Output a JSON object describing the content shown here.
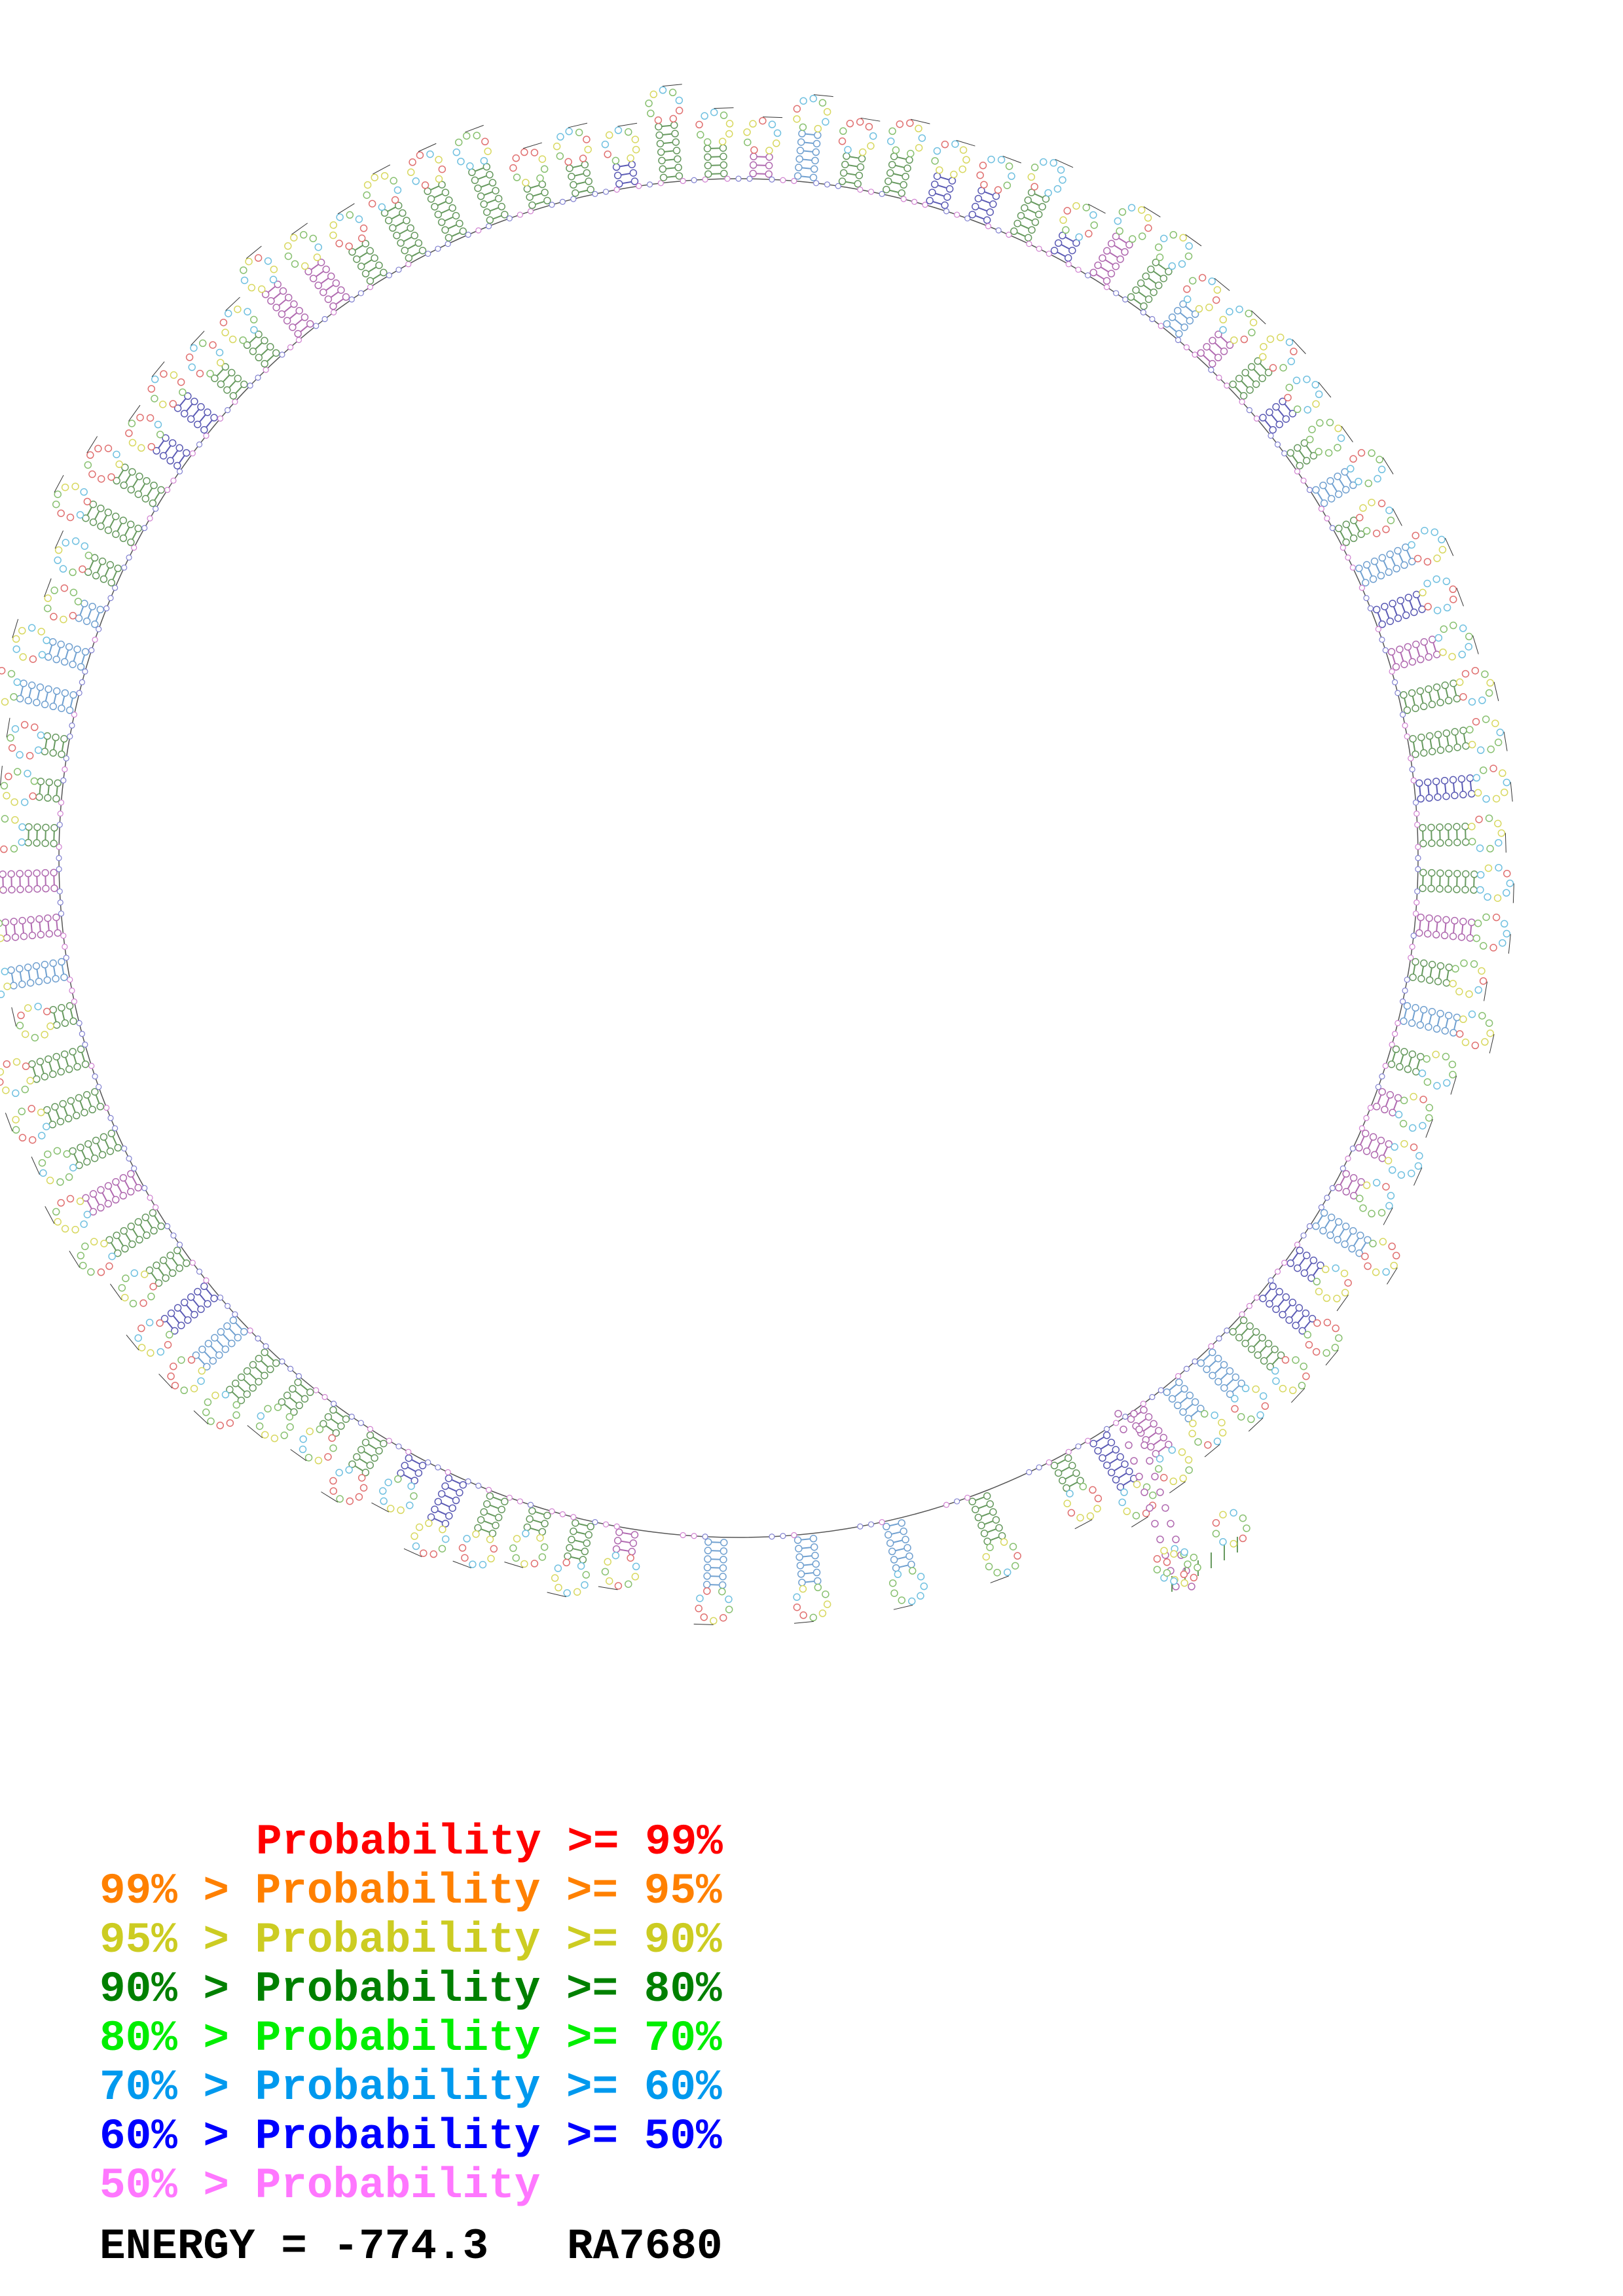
{
  "legend": [
    {
      "text": "Probability >= 99%",
      "color": "#ff0000"
    },
    {
      "text": "99% > Probability >= 95%",
      "color": "#ff8000"
    },
    {
      "text": "95% > Probability >= 90%",
      "color": "#cccc22"
    },
    {
      "text": "90% > Probability >= 80%",
      "color": "#008000"
    },
    {
      "text": "80% > Probability >= 70%",
      "color": "#00ee00"
    },
    {
      "text": "70% > Probability >= 60%",
      "color": "#0099ee"
    },
    {
      "text": "60% > Probability >= 50%",
      "color": "#0000ff"
    },
    {
      "text": "50% > Probability",
      "color": "#ff77ff"
    }
  ],
  "energy": "ENERGY = -774.3",
  "name": "RA7680"
}
